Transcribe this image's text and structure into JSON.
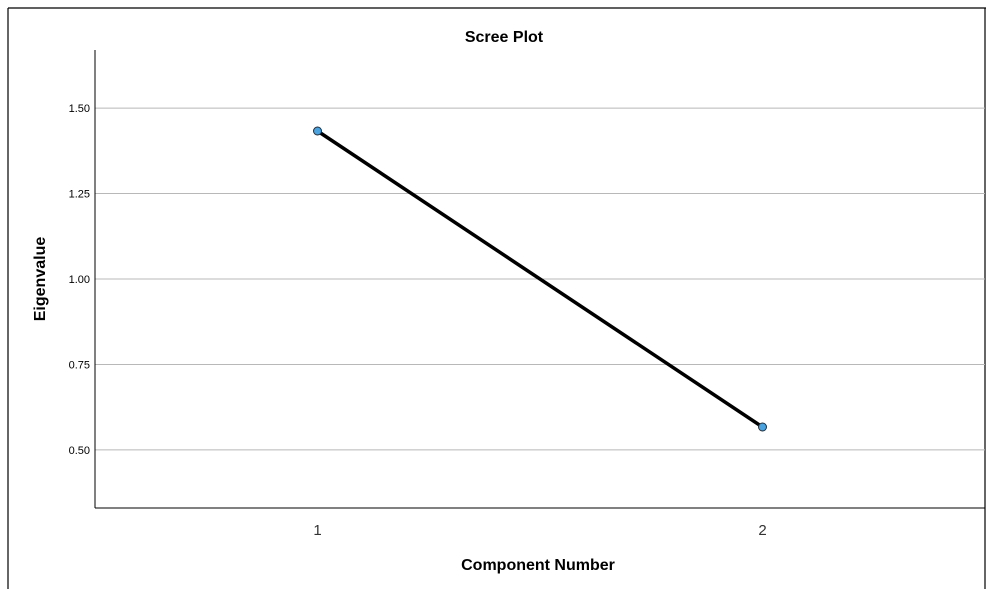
{
  "chart_data": {
    "type": "line",
    "title": "Scree Plot",
    "xlabel": "Component Number",
    "ylabel": "Eigenvalue",
    "x": [
      1,
      2
    ],
    "y": [
      1.433,
      0.567
    ],
    "xticks": [
      "1",
      "2"
    ],
    "yticks": [
      0.5,
      0.75,
      1.0,
      1.25,
      1.5
    ],
    "ytick_labels": [
      "0.50",
      "0.75",
      "1.00",
      "1.25",
      "1.50"
    ],
    "ylim": [
      0.33,
      1.67
    ],
    "xlim": [
      0.5,
      2.5
    ],
    "grid": "horizontal",
    "line_color": "#000000",
    "marker_fill": "#4aa3df",
    "marker_stroke": "#1f2f3f",
    "gridline_color": "#b8b8b8"
  }
}
